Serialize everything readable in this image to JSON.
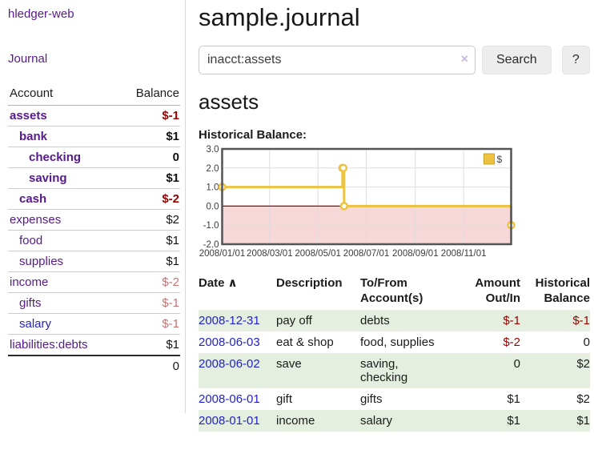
{
  "colors": {
    "accent_purple": "#551a8b",
    "link_blue": "#2222cc",
    "negative_strong": "#990000",
    "negative_soft": "#c17575",
    "row_highlight_green": "#e4efdf",
    "chart_series_yellow": "#edc240",
    "chart_negative_fill": "#f7d8d8",
    "chart_zero_line": "#a00000",
    "chart_grid": "#dddddd",
    "chart_border": "#545454"
  },
  "sidebar": {
    "brand": "hledger-web",
    "journal_link": "Journal",
    "accounts_table": {
      "headers": [
        "Account",
        "Balance"
      ],
      "rows": [
        {
          "label": "assets",
          "balance": "$-1",
          "indent": 0,
          "bold": true,
          "balance_style": "neg"
        },
        {
          "label": "bank",
          "balance": "$1",
          "indent": 1,
          "bold": true,
          "balance_style": "pos"
        },
        {
          "label": "checking",
          "balance": "0",
          "indent": 2,
          "bold": true,
          "balance_style": "pos"
        },
        {
          "label": "saving",
          "balance": "$1",
          "indent": 2,
          "bold": true,
          "balance_style": "pos"
        },
        {
          "label": "cash",
          "balance": "$-2",
          "indent": 1,
          "bold": true,
          "balance_style": "neg"
        },
        {
          "label": "expenses",
          "balance": "$2",
          "indent": 0,
          "bold": false,
          "balance_style": "pos"
        },
        {
          "label": "food",
          "balance": "$1",
          "indent": 1,
          "bold": false,
          "balance_style": "pos"
        },
        {
          "label": "supplies",
          "balance": "$1",
          "indent": 1,
          "bold": false,
          "balance_style": "pos"
        },
        {
          "label": "income",
          "balance": "$-2",
          "indent": 0,
          "bold": false,
          "balance_style": "neg-soft"
        },
        {
          "label": "gifts",
          "balance": "$-1",
          "indent": 1,
          "bold": false,
          "balance_style": "neg-soft"
        },
        {
          "label": "salary",
          "balance": "$-1",
          "indent": 1,
          "bold": false,
          "balance_style": "neg-soft",
          "link_style": "blue"
        },
        {
          "label": "liabilities:debts",
          "balance": "$1",
          "indent": 0,
          "bold": false,
          "balance_style": "pos"
        }
      ],
      "total": "0"
    }
  },
  "main": {
    "title": "sample.journal",
    "search": {
      "value": "inacct:assets",
      "clear_icon": "×",
      "search_button": "Search",
      "help_button": "?"
    },
    "account_heading": "assets",
    "chart_heading": "Historical Balance:"
  },
  "chart_data": {
    "type": "line",
    "step": true,
    "title": "Historical Balance",
    "legend_position": "top-right",
    "series": [
      {
        "name": "$",
        "color": "#edc240",
        "points": [
          [
            "2008-01-01",
            1
          ],
          [
            "2008-06-01",
            2
          ],
          [
            "2008-06-02",
            2
          ],
          [
            "2008-06-03",
            0
          ],
          [
            "2008-12-31",
            -1
          ]
        ]
      }
    ],
    "x_range": [
      "2008-01-01",
      "2008-12-31"
    ],
    "x_ticks": [
      "2008/01/01",
      "2008/03/01",
      "2008/05/01",
      "2008/07/01",
      "2008/09/01",
      "2008/11/01"
    ],
    "y_ticks": [
      "3.0",
      "2.0",
      "1.0",
      "0.0",
      "-1.0",
      "-2.0"
    ],
    "ylim": [
      -2,
      3
    ],
    "grid": true,
    "negative_region_fill": "#f7d8d8",
    "zero_line_color": "#a00000",
    "grid_color": "#dddddd",
    "border_color": "#545454"
  },
  "register_table": {
    "sort_indicator": "∧",
    "headers": [
      "Date",
      "Description",
      "To/From Account(s)",
      "Amount Out/In",
      "Historical Balance"
    ],
    "rows": [
      {
        "date": "2008-12-31",
        "description": "pay off",
        "accounts": "debts",
        "amount": "$-1",
        "amount_neg": true,
        "balance": "$-1",
        "balance_neg": true
      },
      {
        "date": "2008-06-03",
        "description": "eat & shop",
        "accounts": "food, supplies",
        "amount": "$-2",
        "amount_neg": true,
        "balance": "0",
        "balance_neg": false
      },
      {
        "date": "2008-06-02",
        "description": "save",
        "accounts": "saving, checking",
        "amount": "0",
        "amount_neg": false,
        "balance": "$2",
        "balance_neg": false
      },
      {
        "date": "2008-06-01",
        "description": "gift",
        "accounts": "gifts",
        "amount": "$1",
        "amount_neg": false,
        "balance": "$2",
        "balance_neg": false
      },
      {
        "date": "2008-01-01",
        "description": "income",
        "accounts": "salary",
        "amount": "$1",
        "amount_neg": false,
        "balance": "$1",
        "balance_neg": false
      }
    ]
  }
}
